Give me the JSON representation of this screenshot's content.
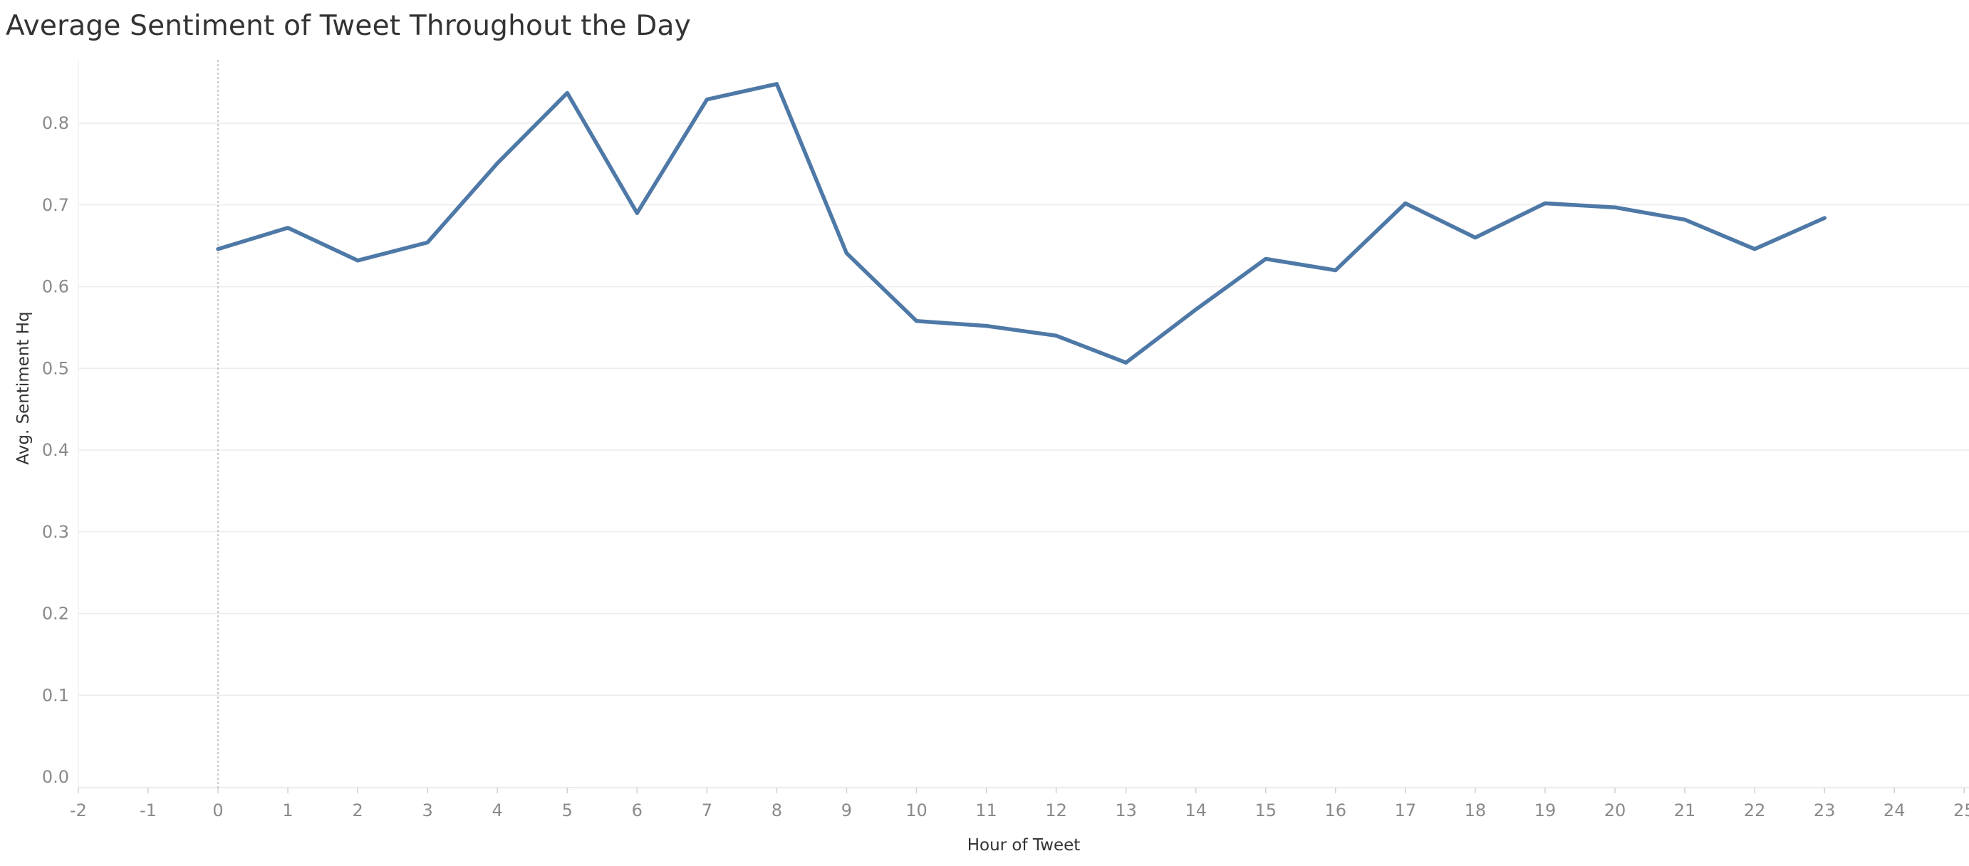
{
  "title": "Average Sentiment of Tweet Throughout the Day",
  "colors": {
    "series": "#4e79a7",
    "grid": "#ececec",
    "zero_line": "#b8b8b8",
    "tick_text": "#8a8a8a",
    "title_text": "#333333"
  },
  "chart_data": {
    "type": "line",
    "title": "Average Sentiment of Tweet Throughout the Day",
    "xlabel": "Hour of Tweet",
    "ylabel": "Avg. Sentiment Hq",
    "xlim": [
      -2,
      25
    ],
    "ylim": [
      0.0,
      0.88
    ],
    "x_ticks": [
      -2,
      -1,
      0,
      1,
      2,
      3,
      4,
      5,
      6,
      7,
      8,
      9,
      10,
      11,
      12,
      13,
      14,
      15,
      16,
      17,
      18,
      19,
      20,
      21,
      22,
      23,
      24,
      25
    ],
    "y_ticks": [
      "0.0",
      "0.1",
      "0.2",
      "0.3",
      "0.4",
      "0.5",
      "0.6",
      "0.7",
      "0.8"
    ],
    "grid": true,
    "legend": "none",
    "series": [
      {
        "x": [
          0,
          1,
          2,
          3,
          4,
          5,
          6,
          7,
          8,
          9,
          10,
          11,
          12,
          13,
          14,
          15,
          16,
          17,
          18,
          19,
          20,
          21,
          22,
          23
        ],
        "values": [
          0.646,
          0.672,
          0.632,
          0.654,
          0.751,
          0.837,
          0.69,
          0.829,
          0.848,
          0.641,
          0.558,
          0.552,
          0.54,
          0.507,
          0.572,
          0.634,
          0.62,
          0.702,
          0.66,
          0.702,
          0.697,
          0.682,
          0.646,
          0.684
        ]
      }
    ]
  }
}
